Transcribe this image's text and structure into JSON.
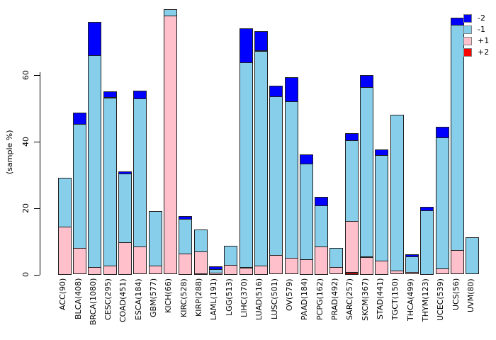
{
  "figure": {
    "background": "#ffffff",
    "text_color": "#000000"
  },
  "y_axis": {
    "label": "(sample %)",
    "ticks": [
      0,
      20,
      40,
      60
    ]
  },
  "legend": {
    "position": "top-right",
    "entries": [
      {
        "label": "-2",
        "color": "#0000FF"
      },
      {
        "label": "-1",
        "color": "#87CEEB"
      },
      {
        "label": "+1",
        "color": "#FFC0CB"
      },
      {
        "label": "+2",
        "color": "#FF0000"
      }
    ]
  },
  "chart_data": {
    "type": "bar",
    "stacked": true,
    "title": "",
    "xlabel": "",
    "ylabel": "(sample %)",
    "ylim": [
      0,
      80
    ],
    "yticks": [
      0,
      20,
      40,
      60
    ],
    "grid": false,
    "legend_position": "top-right",
    "stack_order_bottom_to_top": [
      "+2",
      "+1",
      "-1",
      "-2"
    ],
    "categories": [
      "ACC(90)",
      "BLCA(408)",
      "BRCA(1080)",
      "CESC(295)",
      "COAD(451)",
      "ESCA(184)",
      "GBM(577)",
      "KICH(66)",
      "KIRC(528)",
      "KIRP(288)",
      "LAML(191)",
      "LGG(513)",
      "LIHC(370)",
      "LUAD(516)",
      "LUSC(501)",
      "OV(579)",
      "PAAD(184)",
      "PCPG(162)",
      "PRAD(492)",
      "SARC(257)",
      "SKCM(367)",
      "STAD(441)",
      "TGCT(150)",
      "THCA(499)",
      "THYM(123)",
      "UCEC(539)",
      "UCS(56)",
      "UVM(80)"
    ],
    "series": [
      {
        "name": "-2",
        "color": "#0000FF",
        "values": [
          0,
          3.5,
          10.1,
          1.8,
          0.6,
          2.3,
          0,
          0,
          0.9,
          0,
          0.9,
          0,
          10.2,
          5.8,
          3.1,
          7.2,
          2.7,
          2.6,
          0,
          2.2,
          3.6,
          1.7,
          0,
          0.6,
          1.1,
          3.2,
          2.1,
          0
        ]
      },
      {
        "name": "-1",
        "color": "#87CEEB",
        "values": [
          14.7,
          37.3,
          63.6,
          50.5,
          20.7,
          44.5,
          16.4,
          2.0,
          10.4,
          6.5,
          1.0,
          5.8,
          61.8,
          64.6,
          47.8,
          47.2,
          28.8,
          12.3,
          5.7,
          24.3,
          51.0,
          31.7,
          46.8,
          4.7,
          19.3,
          39.5,
          67.8,
          11.1
        ]
      },
      {
        "name": "+1",
        "color": "#FFC0CB",
        "values": [
          14.4,
          7.9,
          2.3,
          2.7,
          9.7,
          8.4,
          2.6,
          77.8,
          6.3,
          6.8,
          0.6,
          2.9,
          2.1,
          2.7,
          5.8,
          5.0,
          4.6,
          8.5,
          2.2,
          15.4,
          5.3,
          4.2,
          1.3,
          0.7,
          0,
          1.8,
          7.3,
          0
        ]
      },
      {
        "name": "+2",
        "color": "#FF0000",
        "values": [
          0,
          0,
          0,
          0,
          0,
          0,
          0,
          0,
          0,
          0.3,
          0,
          0,
          0,
          0,
          0,
          0,
          0,
          0,
          0,
          0.6,
          0,
          0,
          0,
          0,
          0,
          0,
          0,
          0
        ]
      }
    ]
  }
}
